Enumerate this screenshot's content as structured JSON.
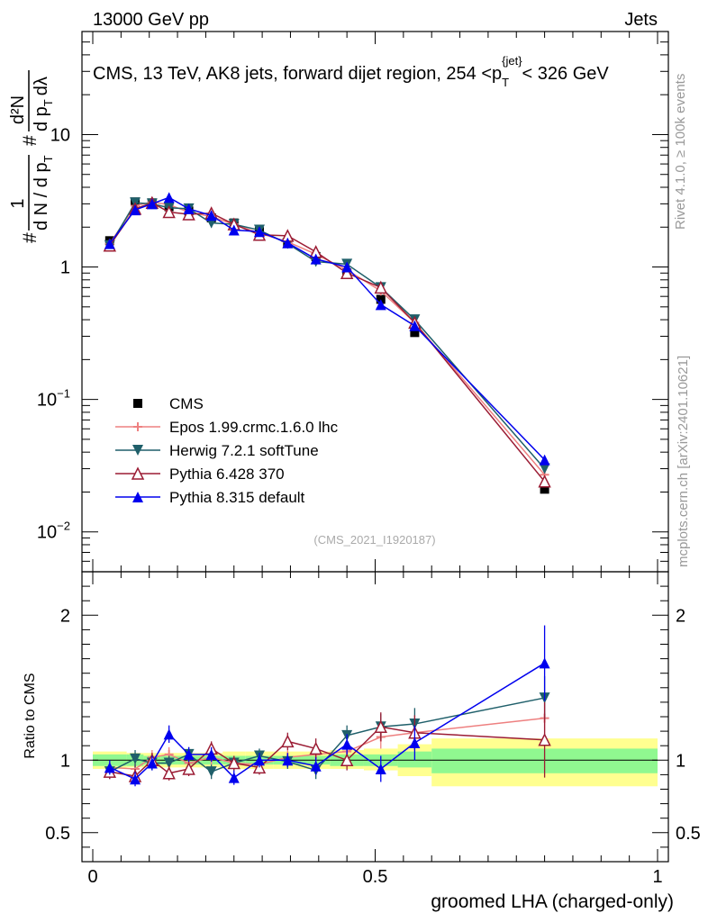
{
  "header": {
    "left": "13000 GeV pp",
    "right": "Jets"
  },
  "side_labels": {
    "rivet": "Rivet 4.1.0, ≥ 100k events",
    "mcplots": "mcplots.cern.ch [arXiv:2401.10621]"
  },
  "watermark": "(CMS_2021_I1920187)",
  "ylabel_top": {
    "pre": "#",
    "frac_num": "1",
    "frac_den": "d N / d p",
    "den_sub": "T",
    "pre2": "#",
    "num2": "d²N",
    "den2": "d p",
    "den2_sub": "T",
    "den2_tail": "dλ"
  },
  "ylabel_bottom": "Ratio to CMS",
  "colors": {
    "cms": "#000000",
    "epos": "#ee8080",
    "herwig": "#1f5f6a",
    "pythia6": "#9b1c34",
    "pythia8": "#0000ee",
    "band_inner": "#90f890",
    "band_outer": "#ffff90"
  },
  "chart_data": [
    {
      "type": "line",
      "title": "CMS, 13 TeV, AK8 jets, forward dijet region, 254 <p_T^{jet}< 326 GeV",
      "title_main": "CMS, 13 TeV, AK8 jets, forward dijet region, 254 <p",
      "title_sub": "T",
      "title_sup": "{jet}",
      "title_tail": "< 326 GeV",
      "xlabel": "groomed LHA (charged-only)",
      "ylabel": "1/(dN/dpT) d²N/(dpT dλ)",
      "yscale": "log",
      "xlim": [
        0,
        1
      ],
      "ylim": [
        0.005,
        60
      ],
      "major_y_ticks": [
        {
          "value": 10,
          "base": "10",
          "exp": ""
        },
        {
          "value": 1,
          "base": "1",
          "exp": ""
        },
        {
          "value": 0.1,
          "base": "10",
          "exp": "−1"
        },
        {
          "value": 0.01,
          "base": "10",
          "exp": "−2"
        }
      ],
      "x": [
        0.03,
        0.075,
        0.105,
        0.135,
        0.17,
        0.21,
        0.25,
        0.295,
        0.345,
        0.395,
        0.45,
        0.51,
        0.57,
        0.8
      ],
      "series": [
        {
          "name": "CMS",
          "key": "cms",
          "marker": "square",
          "values": [
            1.58,
            3.1,
            3.05,
            2.85,
            2.65,
            2.35,
            2.15,
            1.85,
            1.52,
            1.2,
            0.9,
            0.57,
            0.32,
            0.021
          ]
        },
        {
          "name": "Epos 1.99.crmc.1.6.0 lhc",
          "key": "epos",
          "marker": "cross",
          "values": [
            1.5,
            2.9,
            3.1,
            2.95,
            2.6,
            2.4,
            2.1,
            1.8,
            1.55,
            1.25,
            0.95,
            0.66,
            0.38,
            0.027
          ]
        },
        {
          "name": "Herwig 7.2.1 softTune",
          "key": "herwig",
          "marker": "triangle-down",
          "values": [
            1.45,
            3.05,
            3.0,
            2.8,
            2.75,
            2.15,
            2.1,
            1.9,
            1.5,
            1.1,
            1.05,
            0.7,
            0.4,
            0.03
          ]
        },
        {
          "name": "Pythia 6.428 370",
          "key": "pythia6",
          "marker": "triangle-up-open",
          "values": [
            1.45,
            2.75,
            3.05,
            2.6,
            2.5,
            2.55,
            2.1,
            1.75,
            1.72,
            1.3,
            0.9,
            0.7,
            0.38,
            0.024
          ]
        },
        {
          "name": "Pythia 8.315 default",
          "key": "pythia8",
          "marker": "triangle-up",
          "values": [
            1.5,
            2.7,
            3.0,
            3.35,
            2.75,
            2.45,
            1.9,
            1.85,
            1.52,
            1.15,
            1.0,
            0.52,
            0.36,
            0.035
          ]
        }
      ],
      "legend_position": "middle-left"
    },
    {
      "type": "line",
      "title": "",
      "xlabel": "groomed LHA (charged-only)",
      "ylabel": "Ratio to CMS",
      "xlim": [
        0,
        1
      ],
      "ylim": [
        0.3,
        2.3
      ],
      "y_tick_labels": [
        {
          "value": 2,
          "label": "2"
        },
        {
          "value": 1,
          "label": "1"
        },
        {
          "value": 0.5,
          "label": "0.5"
        }
      ],
      "x_tick_labels": [
        {
          "value": 0,
          "label": "0"
        },
        {
          "value": 0.5,
          "label": "0.5"
        },
        {
          "value": 1,
          "label": "1"
        }
      ],
      "bands": [
        {
          "x0": 0.0,
          "x1": 0.06,
          "inner": [
            0.96,
            1.04
          ],
          "outer": [
            0.94,
            1.06
          ]
        },
        {
          "x0": 0.06,
          "x1": 0.09,
          "inner": [
            0.96,
            1.04
          ],
          "outer": [
            0.95,
            1.05
          ]
        },
        {
          "x0": 0.09,
          "x1": 0.12,
          "inner": [
            0.97,
            1.03
          ],
          "outer": [
            0.95,
            1.05
          ]
        },
        {
          "x0": 0.12,
          "x1": 0.15,
          "inner": [
            0.97,
            1.03
          ],
          "outer": [
            0.95,
            1.05
          ]
        },
        {
          "x0": 0.15,
          "x1": 0.19,
          "inner": [
            0.97,
            1.03
          ],
          "outer": [
            0.95,
            1.05
          ]
        },
        {
          "x0": 0.19,
          "x1": 0.23,
          "inner": [
            0.97,
            1.03
          ],
          "outer": [
            0.95,
            1.05
          ]
        },
        {
          "x0": 0.23,
          "x1": 0.27,
          "inner": [
            0.97,
            1.03
          ],
          "outer": [
            0.94,
            1.06
          ]
        },
        {
          "x0": 0.27,
          "x1": 0.32,
          "inner": [
            0.97,
            1.03
          ],
          "outer": [
            0.94,
            1.06
          ]
        },
        {
          "x0": 0.32,
          "x1": 0.37,
          "inner": [
            0.97,
            1.03
          ],
          "outer": [
            0.94,
            1.06
          ]
        },
        {
          "x0": 0.37,
          "x1": 0.42,
          "inner": [
            0.97,
            1.03
          ],
          "outer": [
            0.94,
            1.06
          ]
        },
        {
          "x0": 0.42,
          "x1": 0.48,
          "inner": [
            0.96,
            1.04
          ],
          "outer": [
            0.94,
            1.07
          ]
        },
        {
          "x0": 0.48,
          "x1": 0.54,
          "inner": [
            0.96,
            1.04
          ],
          "outer": [
            0.93,
            1.08
          ]
        },
        {
          "x0": 0.54,
          "x1": 0.6,
          "inner": [
            0.95,
            1.06
          ],
          "outer": [
            0.89,
            1.11
          ]
        },
        {
          "x0": 0.6,
          "x1": 1.0,
          "inner": [
            0.91,
            1.08
          ],
          "outer": [
            0.82,
            1.15
          ]
        }
      ],
      "x": [
        0.03,
        0.075,
        0.105,
        0.135,
        0.17,
        0.21,
        0.25,
        0.295,
        0.345,
        0.395,
        0.45,
        0.51,
        0.57,
        0.8
      ],
      "series": [
        {
          "name": "Epos 1.99.crmc.1.6.0 lhc",
          "key": "epos",
          "marker": "cross",
          "values": [
            0.95,
            0.94,
            1.02,
            1.04,
            0.98,
            1.02,
            0.98,
            0.97,
            1.02,
            1.04,
            1.06,
            1.16,
            1.19,
            1.29
          ],
          "errors": [
            0.04,
            0.05,
            0.05,
            0.05,
            0.04,
            0.05,
            0.04,
            0.04,
            0.05,
            0.05,
            0.06,
            0.08,
            0.1,
            0.12
          ]
        },
        {
          "name": "Herwig 7.2.1 softTune",
          "key": "herwig",
          "marker": "triangle-down",
          "values": [
            0.92,
            1.01,
            0.98,
            0.98,
            1.04,
            0.92,
            0.98,
            1.03,
            0.99,
            0.93,
            1.17,
            1.23,
            1.25,
            1.43
          ],
          "errors": [
            0.05,
            0.06,
            0.05,
            0.05,
            0.05,
            0.05,
            0.05,
            0.05,
            0.05,
            0.06,
            0.07,
            0.09,
            0.11,
            0.15
          ]
        },
        {
          "name": "Pythia 6.428 370",
          "key": "pythia6",
          "marker": "triangle-up-open",
          "values": [
            0.92,
            0.89,
            1.0,
            0.91,
            0.94,
            1.08,
            0.98,
            0.95,
            1.13,
            1.08,
            1.0,
            1.23,
            1.19,
            1.14
          ],
          "errors": [
            0.05,
            0.05,
            0.05,
            0.05,
            0.05,
            0.05,
            0.05,
            0.05,
            0.06,
            0.07,
            0.07,
            0.1,
            0.12,
            0.26
          ]
        },
        {
          "name": "Pythia 8.315 default",
          "key": "pythia8",
          "marker": "triangle-up",
          "values": [
            0.95,
            0.87,
            0.98,
            1.18,
            1.04,
            1.04,
            0.88,
            1.0,
            1.0,
            0.96,
            1.11,
            0.94,
            1.12,
            1.67
          ],
          "errors": [
            0.05,
            0.05,
            0.05,
            0.06,
            0.05,
            0.05,
            0.05,
            0.05,
            0.05,
            0.06,
            0.07,
            0.09,
            0.12,
            0.26
          ]
        }
      ],
      "reference_line": 1
    }
  ]
}
